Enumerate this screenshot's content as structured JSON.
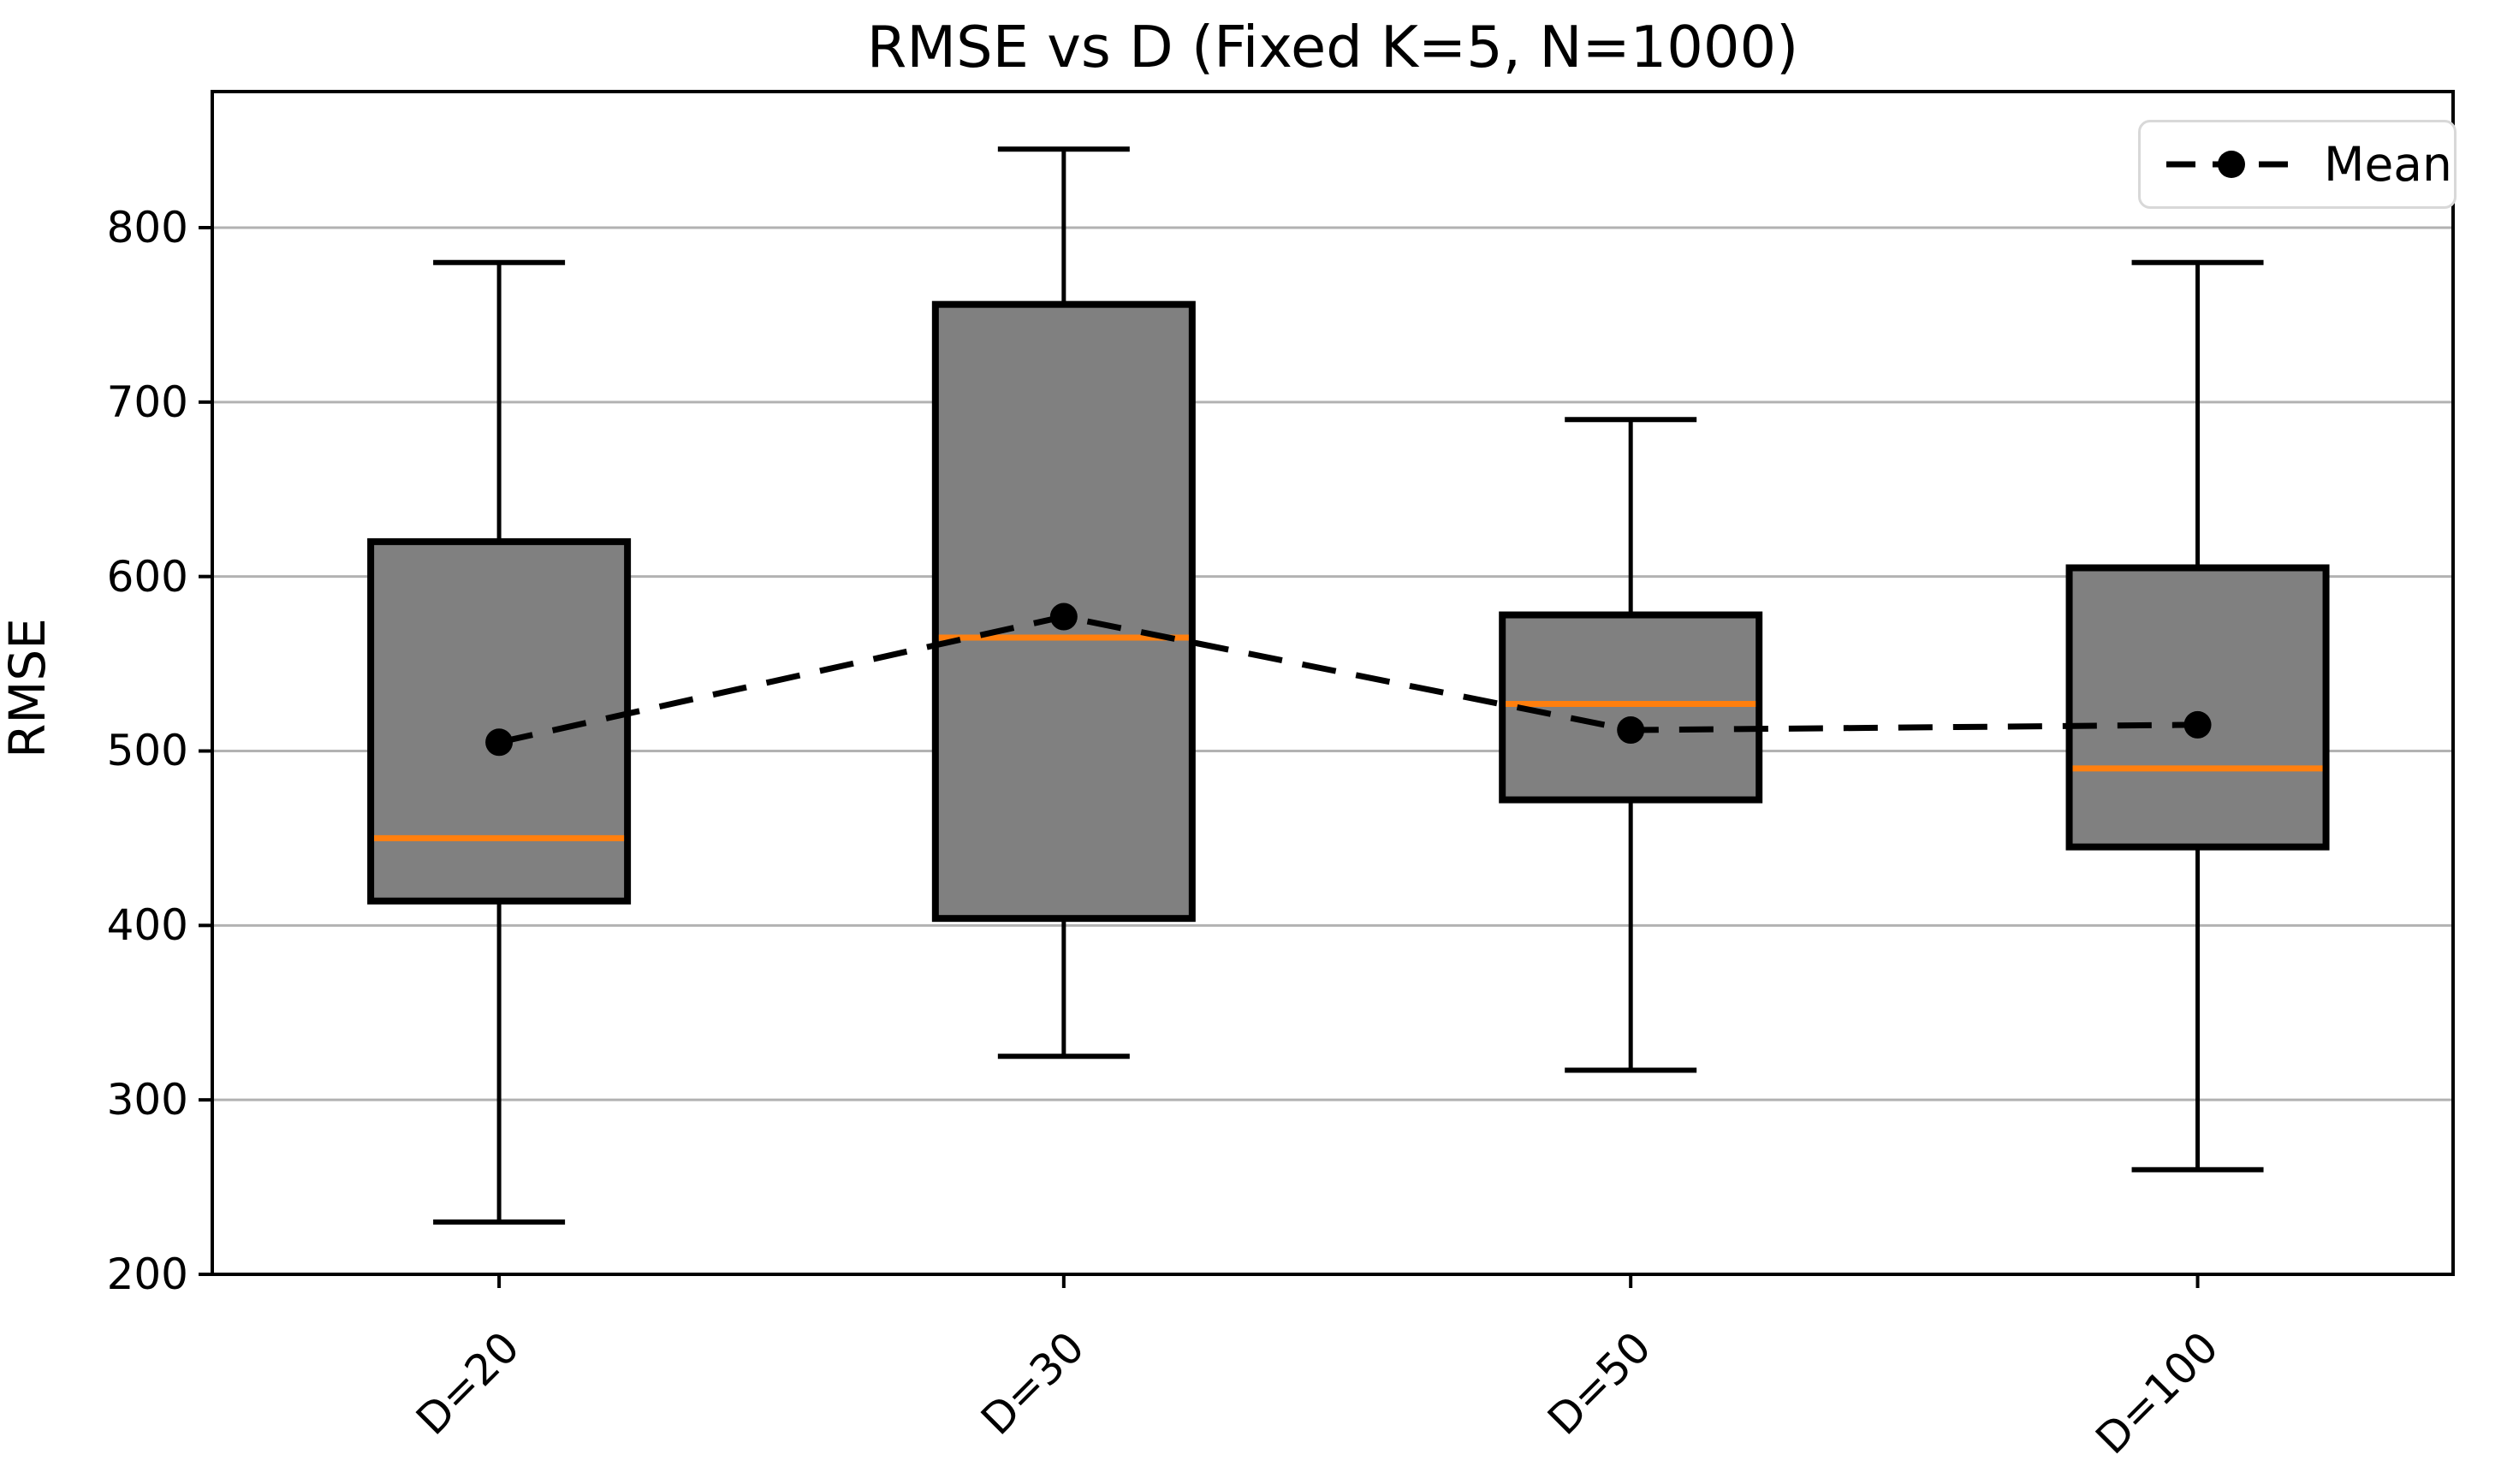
{
  "chart_data": {
    "type": "box",
    "title": "RMSE vs D (Fixed K=5, N=1000)",
    "xlabel": "",
    "ylabel": "RMSE",
    "categories": [
      "D=20",
      "D=30",
      "D=50",
      "D=100"
    ],
    "boxes": [
      {
        "label": "D=20",
        "whisker_low": 230,
        "q1": 414,
        "median": 450,
        "q3": 620,
        "whisker_high": 780,
        "mean": 505
      },
      {
        "label": "D=30",
        "whisker_low": 325,
        "q1": 404,
        "median": 565,
        "q3": 756,
        "whisker_high": 845,
        "mean": 577
      },
      {
        "label": "D=50",
        "whisker_low": 317,
        "q1": 472,
        "median": 527,
        "q3": 578,
        "whisker_high": 690,
        "mean": 512
      },
      {
        "label": "D=100",
        "whisker_low": 260,
        "q1": 445,
        "median": 490,
        "q3": 605,
        "whisker_high": 780,
        "mean": 515
      }
    ],
    "mean_series": {
      "name": "Mean",
      "values": [
        505,
        577,
        512,
        515
      ],
      "style": "dashed-line-with-dots"
    },
    "y_ticks": [
      200,
      300,
      400,
      500,
      600,
      700,
      800
    ],
    "ylim": [
      200,
      878
    ],
    "grid": true,
    "legend": {
      "label": "Mean",
      "position": "upper right"
    },
    "layout": {
      "center_fractions": [
        0.128,
        0.38,
        0.633,
        0.886
      ]
    },
    "colors": {
      "box_fill": "#808080",
      "box_edge": "#000000",
      "median": "#ff7f0e",
      "whisker": "#000000",
      "mean_line": "#000000",
      "mean_marker": "#000000",
      "grid": "#b2b2b2",
      "spine": "#000000",
      "legend_border": "#d8d8d8"
    }
  }
}
